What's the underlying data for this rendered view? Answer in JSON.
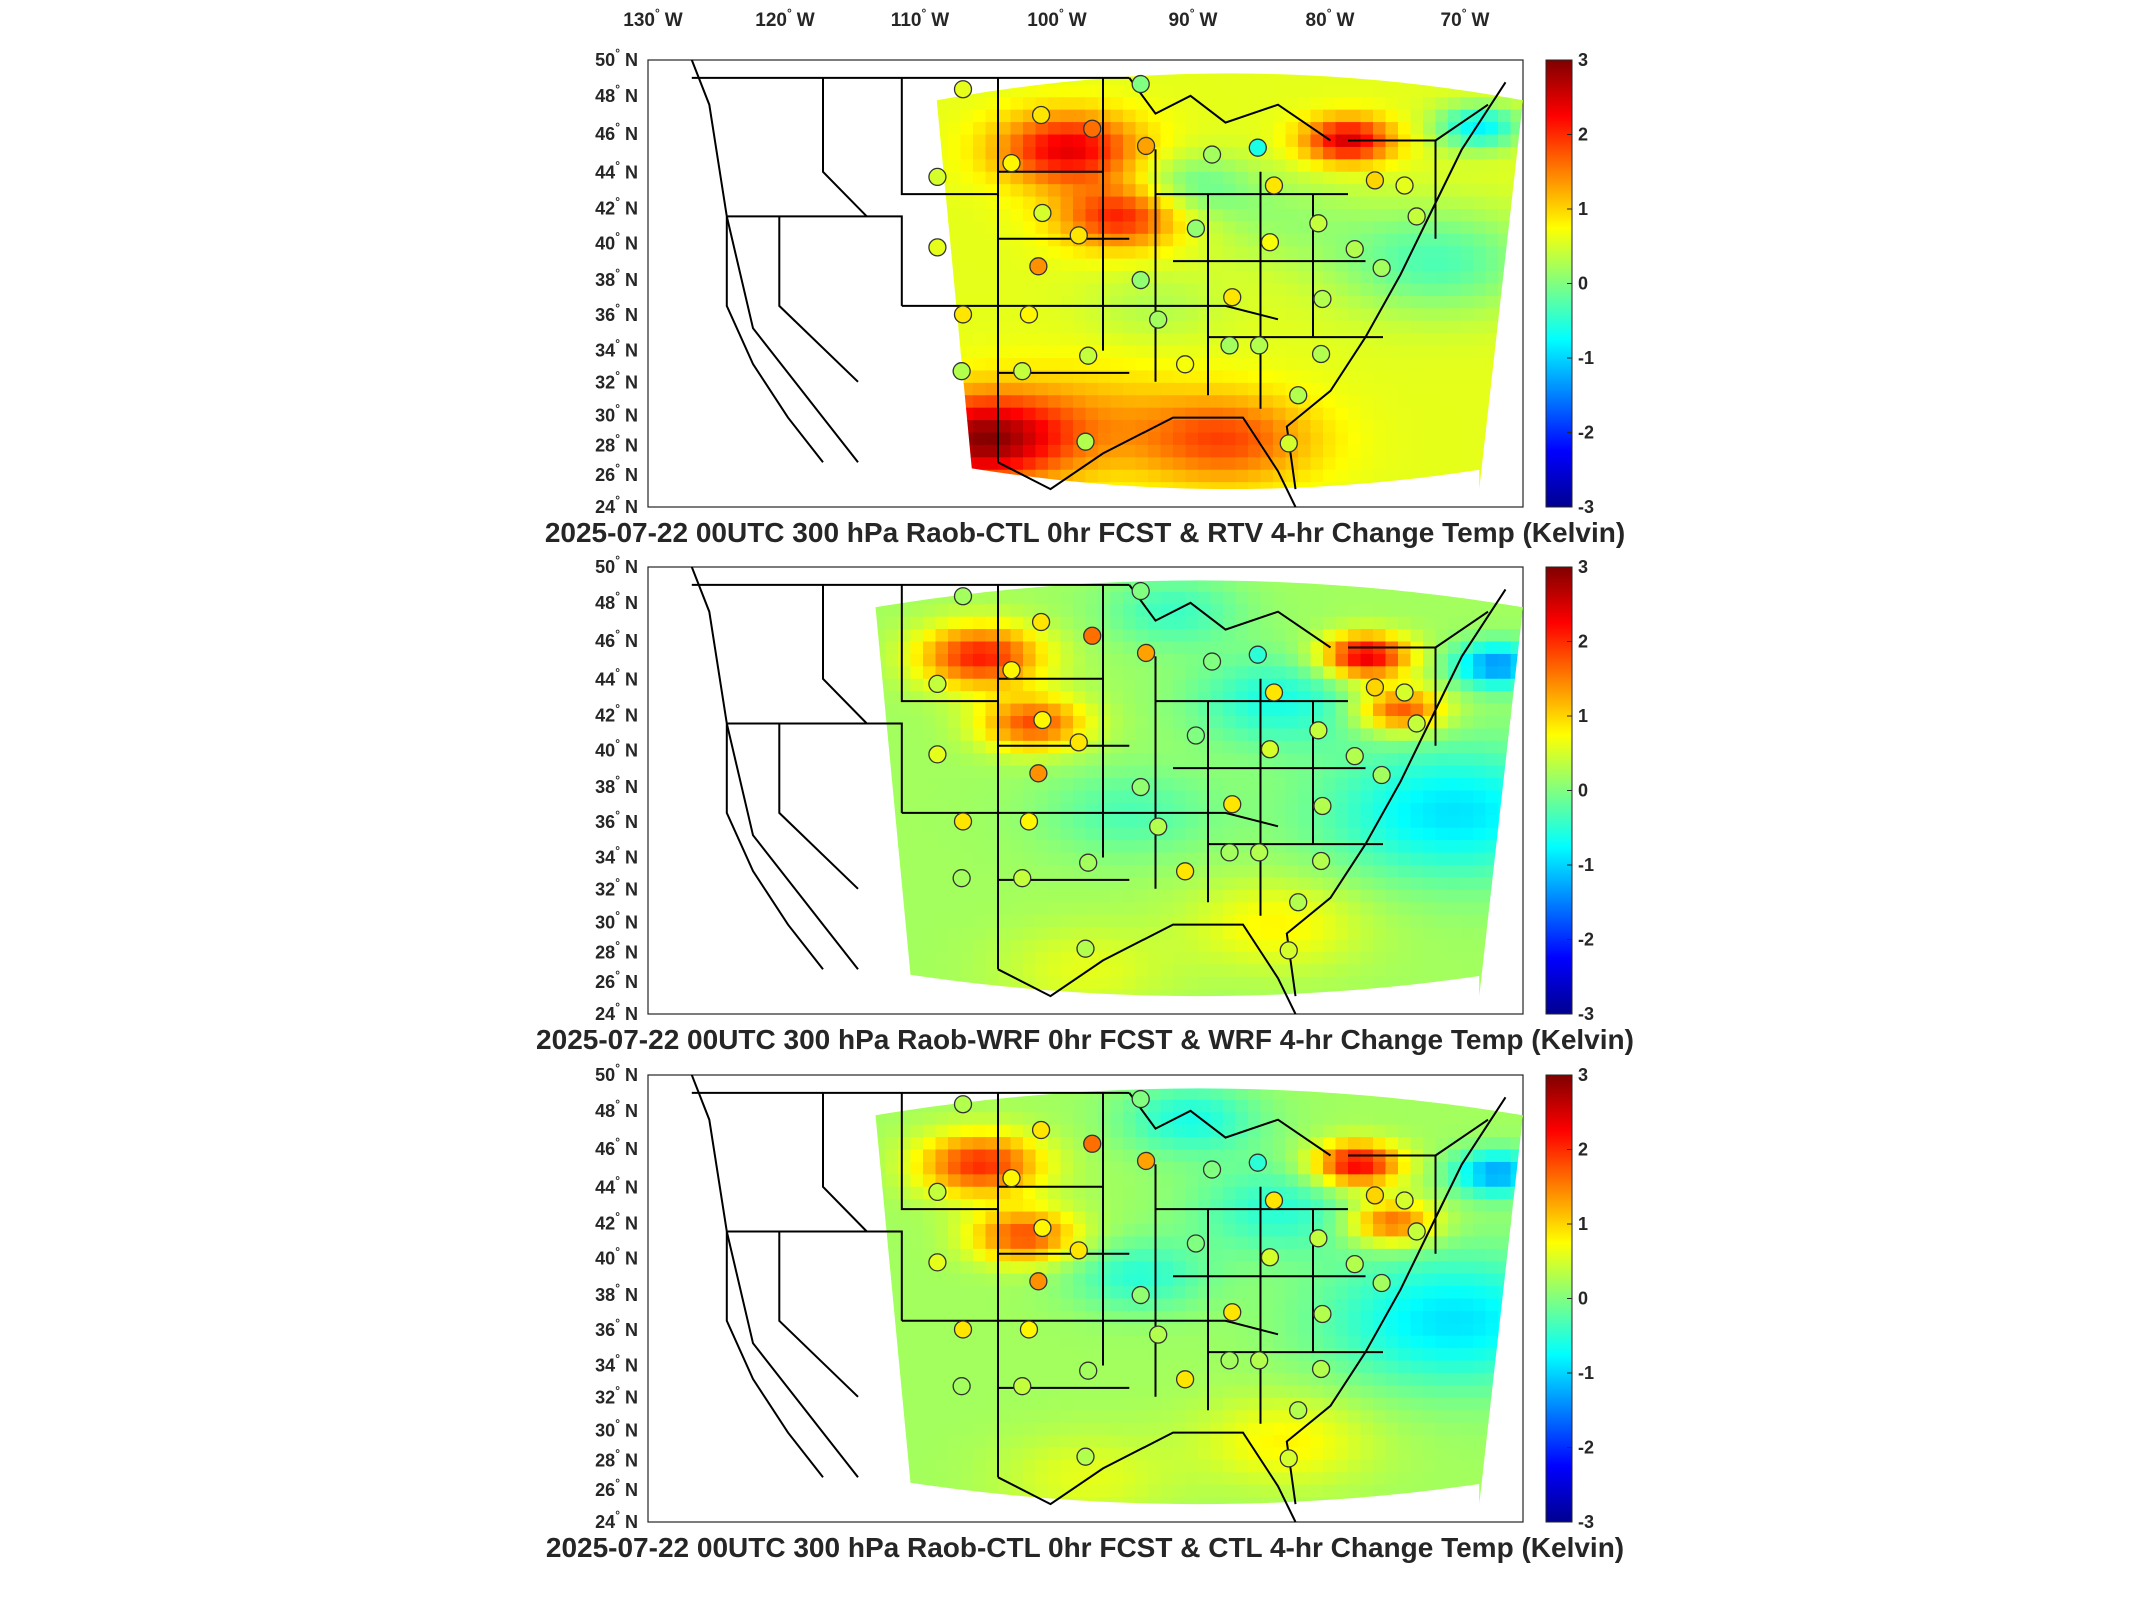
{
  "panels": [
    {
      "title": "2025-07-22 00UTC 300 hPa Raob-CTL 0hr FCST & RTV 4-hr Change Temp (Kelvin)",
      "field": "rtv"
    },
    {
      "title": "2025-07-22 00UTC 300 hPa Raob-WRF 0hr FCST & WRF 4-hr Change Temp (Kelvin)",
      "field": "wrf"
    },
    {
      "title": "2025-07-22 00UTC 300 hPa Raob-CTL 0hr FCST & CTL 4-hr Change Temp (Kelvin)",
      "field": "ctl"
    }
  ],
  "lon_labels": [
    "130",
    "120",
    "110",
    "100",
    "90",
    "80",
    "70"
  ],
  "lon_suffix": "W",
  "lat_labels": [
    "50",
    "48",
    "46",
    "44",
    "42",
    "40",
    "38",
    "36",
    "34",
    "32",
    "30",
    "28",
    "26",
    "24"
  ],
  "lat_suffix": "N",
  "degree_symbol": "°",
  "colorbar": {
    "ticks": [
      "3",
      "2",
      "1",
      "0",
      "-1",
      "-2",
      "-3"
    ],
    "range": [
      -3,
      3
    ],
    "colormap": "jet",
    "colors": [
      "#00008f",
      "#0000ff",
      "#0080ff",
      "#00ffff",
      "#80ff80",
      "#ffff00",
      "#ff8000",
      "#ff0000",
      "#800000"
    ]
  },
  "colors": {
    "state_lines": "#000000",
    "marker_edge": "#333333"
  },
  "chart_data": {
    "type": "heatmap",
    "projection": "lambert-conformal",
    "lon_range": [
      -130,
      -65
    ],
    "lat_range": [
      24,
      50
    ],
    "value_units": "Kelvin",
    "raob_stations": [
      {
        "lat": 48.3,
        "lon": -106.6,
        "rtv": 0.6,
        "wrf": 0.2,
        "ctl": 0.3
      },
      {
        "lat": 46.8,
        "lon": -100.8,
        "rtv": 0.9,
        "wrf": 0.9,
        "ctl": 0.9
      },
      {
        "lat": 46.0,
        "lon": -97.0,
        "rtv": 1.6,
        "wrf": 1.6,
        "ctl": 1.6
      },
      {
        "lat": 45.0,
        "lon": -93.0,
        "rtv": 1.3,
        "wrf": 1.3,
        "ctl": 1.3
      },
      {
        "lat": 48.6,
        "lon": -93.4,
        "rtv": 0.0,
        "wrf": 0.0,
        "ctl": 0.0
      },
      {
        "lat": 44.0,
        "lon": -103.0,
        "rtv": 0.8,
        "wrf": 0.8,
        "ctl": 0.8
      },
      {
        "lat": 43.2,
        "lon": -108.5,
        "rtv": 0.5,
        "wrf": 0.4,
        "ctl": 0.4
      },
      {
        "lat": 39.1,
        "lon": -108.5,
        "rtv": 0.6,
        "wrf": 0.6,
        "ctl": 0.6
      },
      {
        "lat": 41.1,
        "lon": -100.7,
        "rtv": 0.5,
        "wrf": 0.8,
        "ctl": 0.8
      },
      {
        "lat": 39.8,
        "lon": -98.0,
        "rtv": 0.9,
        "wrf": 0.9,
        "ctl": 0.9
      },
      {
        "lat": 38.0,
        "lon": -101.0,
        "rtv": 1.4,
        "wrf": 1.4,
        "ctl": 1.4
      },
      {
        "lat": 35.2,
        "lon": -106.6,
        "rtv": 0.9,
        "wrf": 0.9,
        "ctl": 0.9
      },
      {
        "lat": 35.2,
        "lon": -101.7,
        "rtv": 0.8,
        "wrf": 0.8,
        "ctl": 0.8
      },
      {
        "lat": 31.9,
        "lon": -106.7,
        "rtv": 0.3,
        "wrf": 0.2,
        "ctl": 0.2
      },
      {
        "lat": 31.9,
        "lon": -102.2,
        "rtv": 0.4,
        "wrf": 0.4,
        "ctl": 0.4
      },
      {
        "lat": 32.8,
        "lon": -97.3,
        "rtv": 0.4,
        "wrf": 0.2,
        "ctl": 0.2
      },
      {
        "lat": 34.9,
        "lon": -92.1,
        "rtv": 0.2,
        "wrf": 0.3,
        "ctl": 0.3
      },
      {
        "lat": 37.2,
        "lon": -93.4,
        "rtv": 0.1,
        "wrf": 0.1,
        "ctl": 0.1
      },
      {
        "lat": 40.2,
        "lon": -89.3,
        "rtv": 0.1,
        "wrf": 0.0,
        "ctl": 0.0
      },
      {
        "lat": 44.5,
        "lon": -88.1,
        "rtv": 0.2,
        "wrf": 0.0,
        "ctl": 0.0
      },
      {
        "lat": 44.9,
        "lon": -84.7,
        "rtv": -0.6,
        "wrf": -0.5,
        "ctl": -0.5
      },
      {
        "lat": 42.7,
        "lon": -83.5,
        "rtv": 0.9,
        "wrf": 0.9,
        "ctl": 0.9
      },
      {
        "lat": 39.4,
        "lon": -83.8,
        "rtv": 0.7,
        "wrf": 0.5,
        "ctl": 0.5
      },
      {
        "lat": 40.5,
        "lon": -80.2,
        "rtv": 0.4,
        "wrf": 0.4,
        "ctl": 0.4
      },
      {
        "lat": 43.0,
        "lon": -76.0,
        "rtv": 1.0,
        "wrf": 1.0,
        "ctl": 1.0
      },
      {
        "lat": 42.7,
        "lon": -73.8,
        "rtv": 0.6,
        "wrf": 0.5,
        "ctl": 0.5
      },
      {
        "lat": 40.9,
        "lon": -72.9,
        "rtv": 0.4,
        "wrf": 0.4,
        "ctl": 0.4
      },
      {
        "lat": 39.0,
        "lon": -77.5,
        "rtv": 0.3,
        "wrf": 0.3,
        "ctl": 0.3
      },
      {
        "lat": 37.9,
        "lon": -75.5,
        "rtv": 0.2,
        "wrf": 0.2,
        "ctl": 0.2
      },
      {
        "lat": 36.1,
        "lon": -79.9,
        "rtv": 0.3,
        "wrf": 0.3,
        "ctl": 0.3
      },
      {
        "lat": 36.2,
        "lon": -86.6,
        "rtv": 0.9,
        "wrf": 0.9,
        "ctl": 0.9
      },
      {
        "lat": 32.9,
        "lon": -80.0,
        "rtv": 0.3,
        "wrf": 0.3,
        "ctl": 0.3
      },
      {
        "lat": 33.4,
        "lon": -86.8,
        "rtv": 0.2,
        "wrf": 0.2,
        "ctl": 0.2
      },
      {
        "lat": 33.4,
        "lon": -84.6,
        "rtv": 0.3,
        "wrf": 0.3,
        "ctl": 0.3
      },
      {
        "lat": 32.3,
        "lon": -90.1,
        "rtv": 0.7,
        "wrf": 0.9,
        "ctl": 0.9
      },
      {
        "lat": 30.5,
        "lon": -81.7,
        "rtv": 0.3,
        "wrf": 0.3,
        "ctl": 0.3
      },
      {
        "lat": 27.7,
        "lon": -82.4,
        "rtv": 0.5,
        "wrf": 0.5,
        "ctl": 0.5
      },
      {
        "lat": 27.8,
        "lon": -97.5,
        "rtv": 0.3,
        "wrf": 0.3,
        "ctl": 0.3
      }
    ]
  }
}
